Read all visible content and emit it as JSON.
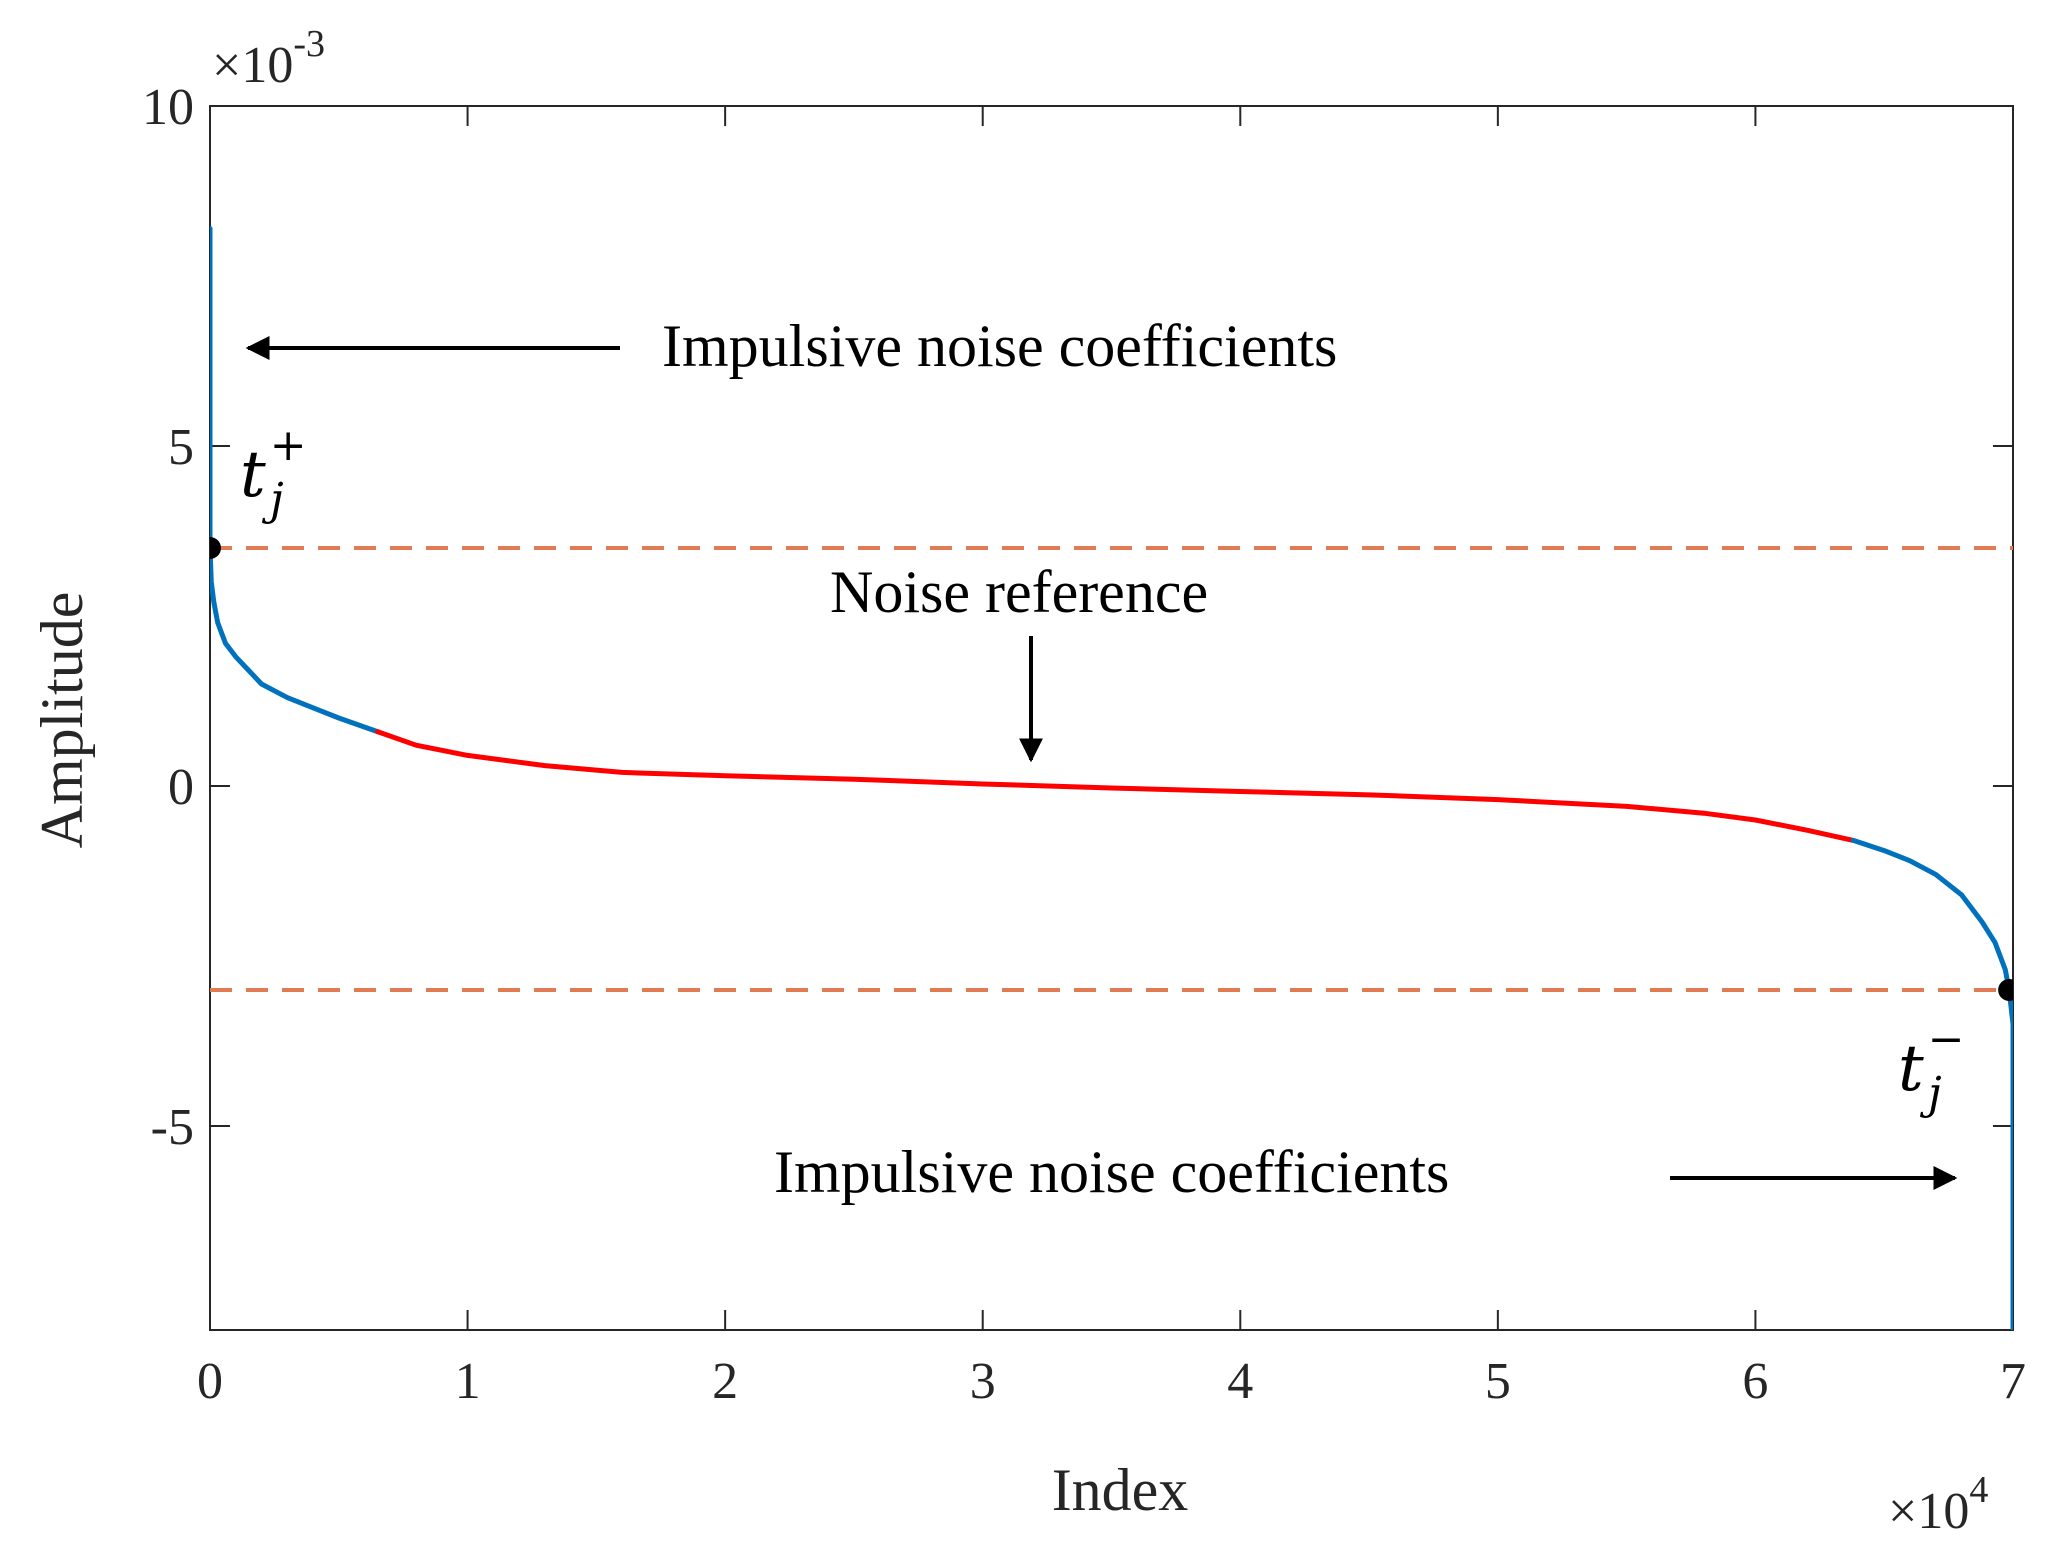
{
  "chart_data": {
    "type": "line",
    "title": "",
    "xlabel": "Index",
    "ylabel": "Amplitude",
    "xlim": [
      0,
      70000
    ],
    "ylim": [
      -0.008,
      0.01
    ],
    "x_ticks": [
      0,
      10000,
      20000,
      30000,
      40000,
      50000,
      60000,
      70000
    ],
    "x_tick_labels": [
      "0",
      "1",
      "2",
      "3",
      "4",
      "5",
      "6",
      "7"
    ],
    "x_exponent": {
      "base": "×10",
      "power": "4"
    },
    "y_ticks": [
      0.01,
      0.005,
      0,
      -0.005
    ],
    "y_tick_labels": [
      "10",
      "5",
      "0",
      "-5"
    ],
    "y_exponent": {
      "base": "×10",
      "power": "-3"
    },
    "colors": {
      "impulsive": "#0072BD",
      "noise_reference": "#FF0000",
      "threshold": "#E07B54",
      "marker": "#000000",
      "axis": "#262626"
    },
    "series": [
      {
        "name": "Impulsive noise coefficients (upper)",
        "color": "#0072BD",
        "x": [
          0,
          0,
          0,
          0,
          0,
          50,
          150,
          300,
          600,
          1000,
          1500,
          2000,
          3000,
          4000,
          5000,
          6500
        ],
        "y": [
          0.0082,
          0.0065,
          0.005,
          0.004,
          0.0035,
          0.003,
          0.0027,
          0.0024,
          0.0021,
          0.0019,
          0.0017,
          0.0015,
          0.0013,
          0.00115,
          0.001,
          0.0008
        ]
      },
      {
        "name": "Noise reference",
        "color": "#FF0000",
        "x": [
          6500,
          8000,
          10000,
          13000,
          16000,
          20000,
          25000,
          30000,
          35000,
          40000,
          45000,
          50000,
          55000,
          58000,
          60000,
          62000,
          63800
        ],
        "y": [
          0.0008,
          0.0006,
          0.00045,
          0.0003,
          0.0002,
          0.00015,
          0.0001,
          3e-05,
          -3e-05,
          -8e-05,
          -0.00013,
          -0.0002,
          -0.0003,
          -0.0004,
          -0.0005,
          -0.00065,
          -0.0008
        ]
      },
      {
        "name": "Impulsive noise coefficients (lower)",
        "color": "#0072BD",
        "x": [
          63800,
          65000,
          66000,
          67000,
          68000,
          68800,
          69300,
          69700,
          69850,
          70000,
          70000,
          70000,
          70000,
          70000
        ],
        "y": [
          -0.0008,
          -0.00095,
          -0.0011,
          -0.0013,
          -0.0016,
          -0.002,
          -0.0023,
          -0.0027,
          -0.003,
          -0.0035,
          -0.004,
          -0.005,
          -0.007,
          -0.0081
        ]
      }
    ],
    "thresholds": [
      {
        "name": "t_j^+",
        "y": 0.0035,
        "marker_x": 0
      },
      {
        "name": "t_j^-",
        "y": -0.003,
        "marker_x": 69850
      }
    ],
    "annotations": {
      "upper_impulsive": "Impulsive noise coefficients",
      "noise_reference": "Noise reference",
      "lower_impulsive": "Impulsive noise coefficients",
      "t_plus_base": "t",
      "t_plus_sub": "j",
      "t_plus_sup": "+",
      "t_minus_base": "t",
      "t_minus_sub": "j",
      "t_minus_sup": "−"
    }
  }
}
